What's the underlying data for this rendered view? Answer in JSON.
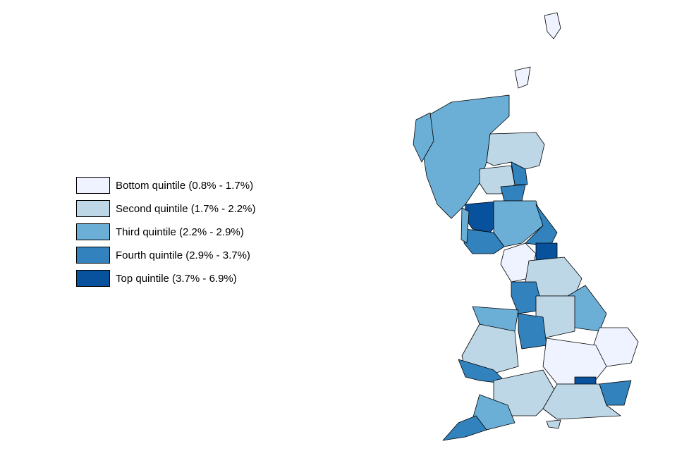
{
  "legend": {
    "items": [
      {
        "label": "Bottom quintile (0.8% - 1.7%)",
        "color": "#eff3ff"
      },
      {
        "label": "Second quintile (1.7% - 2.2%)",
        "color": "#bdd7e7"
      },
      {
        "label": "Third quintile (2.2% - 2.9%)",
        "color": "#6baed6"
      },
      {
        "label": "Fourth quintile (2.9% - 3.7%)",
        "color": "#3182bd"
      },
      {
        "label": "Top quintile (3.7% - 6.9%)",
        "color": "#08519c"
      }
    ]
  },
  "map": {
    "region_quintiles": [
      3,
      2,
      4,
      2,
      4,
      5,
      3,
      4,
      4,
      1,
      5,
      2,
      4,
      3,
      2,
      3,
      2,
      4,
      4,
      1,
      1,
      5,
      2,
      3,
      4,
      2,
      4,
      1,
      1,
      3,
      3,
      2
    ]
  }
}
